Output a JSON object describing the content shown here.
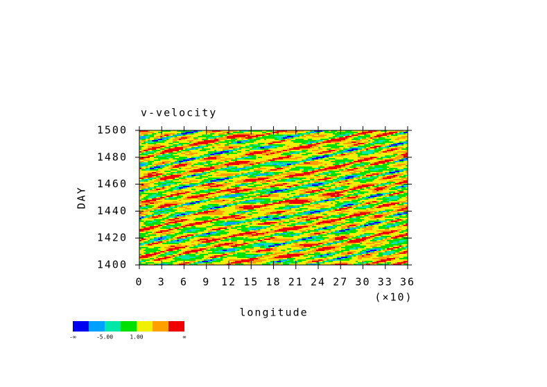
{
  "chart_data": {
    "type": "hovmoller",
    "title": "v-velocity",
    "x_label": "longitude",
    "y_label": "DAY",
    "x_multiplier": "(×10)",
    "xlim": [
      0,
      36
    ],
    "xticks": [
      0,
      3,
      6,
      9,
      12,
      15,
      18,
      21,
      24,
      27,
      30,
      33,
      36
    ],
    "ylim": [
      1400,
      1500
    ],
    "yticks": [
      1400,
      1420,
      1440,
      1460,
      1480,
      1500
    ],
    "colorbar": {
      "colors": [
        "#0000f0",
        "#00a0ff",
        "#00e8a8",
        "#00e000",
        "#f0f000",
        "#ffa000",
        "#f00000"
      ],
      "labels": [
        "-∞",
        null,
        "-5.00",
        null,
        "1.00",
        null,
        null,
        "∞"
      ]
    }
  }
}
